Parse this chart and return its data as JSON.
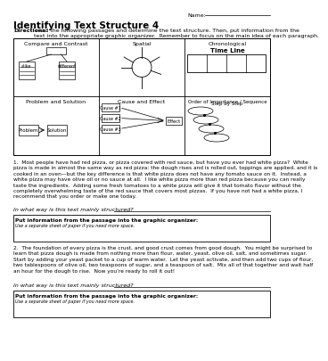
{
  "title": "Identifying Text Structure 4",
  "name_label": "Name:",
  "directions_bold": "Directions:",
  "directions_rest": " read the following passages and determine the text structure. Then, put information from the\ntext into the appropriate graphic organizer.  Remember to focus on the main idea of each paragraph.",
  "section1_label": "Compare and Contrast",
  "section2_label": "Spatial",
  "section3_label": "Chronological",
  "section4_label": "Problem and Solution",
  "section5_label": "Cause and Effect",
  "section6_label": "Order of Importance / Sequence",
  "timeline_label": "Time Line",
  "step_label": "Step by Step",
  "problem_label": "Problem",
  "solution_label": "Solution",
  "cause1_label": "Cause #1",
  "cause2_label": "Cause #2",
  "cause3_label": "Cause #3",
  "effect_label": "Effect",
  "alike_label": "alike",
  "different_label": "different",
  "passage1": "1.  Most people have had red pizza, or pizza covered with red sauce, but have you ever had white pizza?  White\npizza is made in almost the same way as red pizza: the dough rises and is rolled out, toppings are applied, and it is\ncooked in an oven—but the key difference is that white pizza does not have any tomato sauce on it.  Instead, a\nwhite pizza may have olive oil or no sauce at all.  I like white pizza more than red pizza because you can really\ntaste the ingredients.  Adding some fresh tomatoes to a white pizza will give it that tomato flavor without the\ncompletely overwhelming taste of the red sauce that covers most pizzas.  If you have not had a white pizza, I\nrecommend that you order or make one today.",
  "question1": "In what way is this text mainly structured?",
  "box1_label": "Put information from the passage into the graphic organizer:",
  "box1_sublabel": "Use a separate sheet of paper if you need more space.",
  "passage2": "2.  The foundation of every pizza is the crust, and good crust comes from good dough.  You might be surprised to\nlearn that pizza dough is made from nothing more than flour, water, yeast, olive oil, salt, and sometimes sugar.\nStart by adding your yeast packet to a cup of warm water.  Let the yeast activate, and then add two cups of flour,\ntwo tablespoons of olive oil, two teaspoons of sugar, and a teaspoon of salt.  Mix all of that together and wait half\nan hour for the dough to rise.  Now you’re ready to roll it out!",
  "question2": "In what way is this text mainly structured?",
  "box2_label": "Put information from the passage into the graphic organizer:",
  "box2_sublabel": "Use a separate sheet of paper if you need more space.",
  "bg_color": "#ffffff"
}
